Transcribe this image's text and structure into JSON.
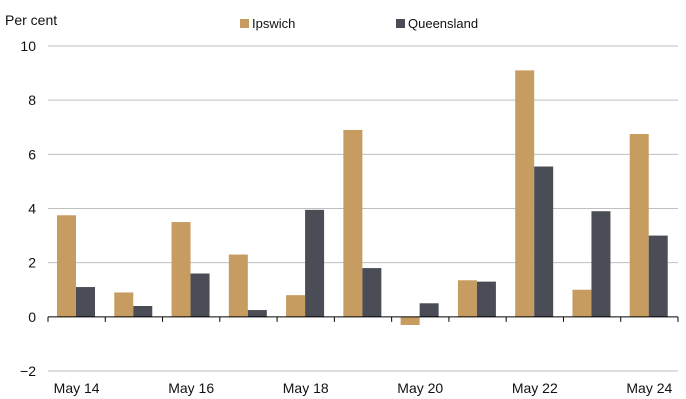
{
  "chart_data": {
    "type": "bar",
    "ylabel": "Per cent",
    "ylim": [
      -2,
      10
    ],
    "yticks": [
      -2,
      0,
      2,
      4,
      6,
      8,
      10
    ],
    "ytick_labels": [
      "−2",
      "0",
      "2",
      "4",
      "6",
      "8",
      "10"
    ],
    "categories": [
      "May 14",
      "May 15",
      "May 16",
      "May 17",
      "May 18",
      "May 19",
      "May 20",
      "May 21",
      "May 22",
      "May 23",
      "May 24"
    ],
    "xtick_labels": [
      "May 14",
      "May 16",
      "May 18",
      "May 20",
      "May 22",
      "May 24"
    ],
    "grid": true,
    "legend_position": "top",
    "series": [
      {
        "name": "Ipswich",
        "color": "#C69C61",
        "values": [
          3.75,
          0.9,
          3.5,
          2.3,
          0.8,
          6.9,
          -0.3,
          1.35,
          9.1,
          1.0,
          6.75
        ]
      },
      {
        "name": "Queensland",
        "color": "#4A4D55",
        "values": [
          1.1,
          0.4,
          1.6,
          0.25,
          3.95,
          1.8,
          0.5,
          1.3,
          5.55,
          3.9,
          3.0
        ]
      }
    ]
  }
}
